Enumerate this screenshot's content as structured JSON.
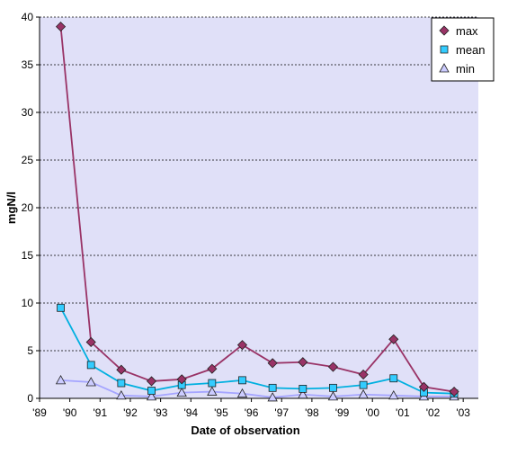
{
  "chart_data": {
    "type": "line",
    "title": "",
    "xlabel": "Date of observation",
    "ylabel": "mgN/l",
    "xlim": [
      1989,
      2003.5
    ],
    "ylim": [
      0,
      40
    ],
    "x_ticks": [
      1989,
      1990,
      1991,
      1992,
      1993,
      1994,
      1995,
      1996,
      1997,
      1998,
      1999,
      2000,
      2001,
      2002,
      2003
    ],
    "x_tick_labels": [
      "'89",
      "'90",
      "'91",
      "'92",
      "'93",
      "'94",
      "'95",
      "'96",
      "'97",
      "'98",
      "'99",
      "'00",
      "'01",
      "'02",
      "'03"
    ],
    "y_ticks": [
      0,
      5,
      10,
      15,
      20,
      25,
      30,
      35,
      40
    ],
    "grid": "horizontal dashed",
    "legend_position": "top-right",
    "x": [
      1989.7,
      1990.7,
      1991.7,
      1992.7,
      1993.7,
      1994.7,
      1995.7,
      1996.7,
      1997.7,
      1998.7,
      1999.7,
      2000.7,
      2001.7,
      2002.7
    ],
    "series": [
      {
        "name": "max",
        "marker": "diamond",
        "color": "#993366",
        "marker_fill": "#993366",
        "values": [
          39.0,
          5.9,
          3.0,
          1.8,
          2.0,
          3.1,
          5.6,
          3.7,
          3.8,
          3.3,
          2.5,
          6.2,
          1.2,
          0.7
        ]
      },
      {
        "name": "mean",
        "marker": "square",
        "color": "#00b0e0",
        "marker_fill": "#33ccff",
        "values": [
          9.5,
          3.5,
          1.6,
          0.8,
          1.4,
          1.6,
          1.9,
          1.1,
          1.0,
          1.1,
          1.4,
          2.1,
          0.6,
          0.5
        ]
      },
      {
        "name": "min",
        "marker": "triangle",
        "color": "#a5a5ff",
        "marker_fill": "#ccccff",
        "values": [
          1.9,
          1.7,
          0.3,
          0.2,
          0.6,
          0.7,
          0.5,
          0.1,
          0.4,
          0.2,
          0.4,
          0.3,
          0.2,
          0.2
        ]
      }
    ]
  },
  "colors": {
    "plot_background": "#e0e0f8",
    "grid": "#000000"
  }
}
